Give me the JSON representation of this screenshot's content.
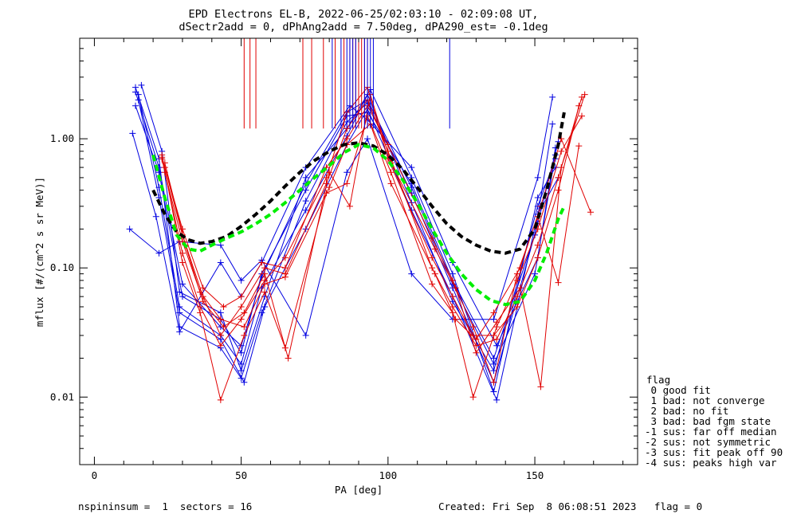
{
  "title_line1": "EPD Electrons EL-B, 2022-06-25/02:03:10 - 02:09:08 UT,",
  "title_line2": "dSectr2add = 0, dPhAng2add = 7.50deg, dPA290_est=  -0.1deg",
  "footer_left": "nspininsum =  1  sectors = 16",
  "footer_right": "Created: Fri Sep  8 06:08:51 2023   flag = 0",
  "legend": {
    "heading": "flag",
    "items": [
      " 0 good fit",
      " 1 bad: not converge",
      " 2 bad: no fit",
      " 3 bad: bad fgm state",
      "-1 sus: far off median",
      "-2 sus: not symmetric",
      "-3 sus: fit peak off 90",
      "-4 sus: peaks high var"
    ]
  },
  "colors": {
    "red": "#e00000",
    "blue": "#0000e0",
    "black": "#000000",
    "green": "#00ee00"
  },
  "chart_data": {
    "type": "line",
    "xlabel": "PA [deg]",
    "ylabel": "mflux [#/(cm^2 s sr MeV)]",
    "xlim": [
      -5,
      185
    ],
    "ylim": [
      0.003,
      6.0
    ],
    "yscale": "log",
    "xticks": [
      0,
      50,
      100,
      150
    ],
    "xtick_labels": [
      "0",
      "50",
      "100",
      "150"
    ],
    "yticks": [
      0.01,
      0.1,
      1.0
    ],
    "ytick_labels": [
      "0.01",
      "0.10",
      "1.00"
    ],
    "series": [
      {
        "color": "blue",
        "x": [
          14,
          22,
          29,
          43,
          50,
          57,
          72,
          86,
          93,
          108,
          122,
          136,
          151,
          158
        ],
        "y": [
          2.5,
          0.7,
          0.035,
          0.024,
          0.014,
          0.045,
          0.33,
          1.35,
          1.9,
          0.38,
          0.07,
          0.013,
          0.22,
          0.95
        ]
      },
      {
        "color": "blue",
        "x": [
          15,
          22,
          29,
          43,
          50,
          57,
          72,
          86,
          93,
          108,
          122,
          136,
          151,
          157
        ],
        "y": [
          2.2,
          0.42,
          0.05,
          0.03,
          0.018,
          0.07,
          0.28,
          1.05,
          2.2,
          0.32,
          0.055,
          0.016,
          0.3,
          0.7
        ]
      },
      {
        "color": "blue",
        "x": [
          14,
          22,
          30,
          43,
          50,
          57,
          72,
          86,
          93,
          108,
          122,
          136,
          150,
          156
        ],
        "y": [
          1.8,
          0.55,
          0.06,
          0.04,
          0.022,
          0.09,
          0.4,
          1.5,
          1.6,
          0.45,
          0.08,
          0.02,
          0.18,
          1.3
        ]
      },
      {
        "color": "blue",
        "x": [
          16,
          23,
          29,
          43,
          50,
          58,
          72,
          86,
          94,
          108,
          122,
          136,
          151,
          157
        ],
        "y": [
          2.6,
          0.8,
          0.065,
          0.045,
          0.016,
          0.06,
          0.5,
          1.2,
          2.4,
          0.5,
          0.09,
          0.011,
          0.35,
          0.6
        ]
      },
      {
        "color": "blue",
        "x": [
          13,
          21,
          29,
          43,
          50,
          57,
          72,
          87,
          93,
          108,
          122,
          137,
          151,
          157
        ],
        "y": [
          1.1,
          0.25,
          0.032,
          0.11,
          0.06,
          0.11,
          0.6,
          1.8,
          1.4,
          0.6,
          0.11,
          0.025,
          0.12,
          0.85
        ]
      },
      {
        "color": "blue",
        "x": [
          12,
          22,
          29,
          43,
          50,
          57,
          72,
          86,
          93,
          108,
          122,
          136,
          151,
          156
        ],
        "y": [
          0.2,
          0.13,
          0.16,
          0.15,
          0.08,
          0.115,
          0.03,
          0.55,
          1.0,
          0.09,
          0.04,
          0.04,
          0.5,
          2.1
        ]
      },
      {
        "color": "blue",
        "x": [
          15,
          22,
          29,
          43,
          51,
          58,
          72,
          86,
          93,
          108,
          122,
          137,
          151,
          158
        ],
        "y": [
          2.0,
          0.35,
          0.045,
          0.028,
          0.013,
          0.05,
          0.2,
          0.9,
          1.7,
          0.28,
          0.06,
          0.0095,
          0.26,
          0.5
        ]
      },
      {
        "color": "blue",
        "x": [
          14,
          22,
          30,
          43,
          50,
          57,
          72,
          86,
          93,
          108,
          122,
          136,
          150,
          157
        ],
        "y": [
          2.3,
          0.6,
          0.075,
          0.035,
          0.025,
          0.085,
          0.45,
          1.6,
          2.0,
          0.42,
          0.075,
          0.018,
          0.09,
          0.75
        ]
      },
      {
        "color": "red",
        "x": [
          23,
          30,
          36,
          43,
          50,
          58,
          65,
          79,
          86,
          93,
          100,
          115,
          122,
          129,
          136,
          144,
          151,
          158,
          165
        ],
        "y": [
          0.7,
          0.13,
          0.05,
          0.025,
          0.04,
          0.08,
          0.12,
          0.5,
          1.6,
          2.5,
          0.7,
          0.12,
          0.06,
          0.03,
          0.03,
          0.05,
          0.12,
          0.4,
          1.8
        ]
      },
      {
        "color": "red",
        "x": [
          24,
          30,
          37,
          43,
          50,
          58,
          65,
          79,
          86,
          93,
          100,
          115,
          122,
          130,
          137,
          144,
          151,
          158,
          166
        ],
        "y": [
          0.6,
          0.18,
          0.06,
          0.03,
          0.05,
          0.1,
          0.09,
          0.45,
          1.2,
          2.0,
          0.8,
          0.1,
          0.05,
          0.025,
          0.028,
          0.06,
          0.15,
          0.5,
          2.1
        ]
      },
      {
        "color": "red",
        "x": [
          23,
          30,
          36,
          43,
          51,
          58,
          65,
          79,
          86,
          93,
          101,
          115,
          122,
          129,
          137,
          144,
          151,
          159,
          166
        ],
        "y": [
          0.75,
          0.11,
          0.045,
          0.0095,
          0.03,
          0.065,
          0.024,
          0.38,
          0.45,
          1.5,
          0.55,
          0.075,
          0.045,
          0.01,
          0.035,
          0.08,
          0.2,
          0.8,
          1.5
        ]
      },
      {
        "color": "red",
        "x": [
          24,
          31,
          37,
          44,
          51,
          58,
          66,
          80,
          87,
          94,
          101,
          116,
          123,
          130,
          137,
          145,
          152,
          159,
          167
        ],
        "y": [
          0.65,
          0.15,
          0.055,
          0.035,
          0.045,
          0.09,
          0.02,
          0.55,
          0.3,
          2.2,
          0.65,
          0.14,
          0.07,
          0.022,
          0.038,
          0.07,
          0.012,
          0.6,
          2.2
        ]
      },
      {
        "color": "red",
        "x": [
          23,
          30,
          37,
          44,
          50,
          57,
          65,
          79,
          86,
          93,
          100,
          115,
          122,
          129,
          136,
          144,
          151,
          158,
          165
        ],
        "y": [
          0.72,
          0.2,
          0.07,
          0.05,
          0.06,
          0.11,
          0.1,
          0.6,
          1.0,
          1.8,
          0.9,
          0.17,
          0.08,
          0.035,
          0.013,
          0.09,
          0.25,
          0.077,
          0.88
        ]
      },
      {
        "color": "red",
        "x": [
          24,
          30,
          36,
          43,
          51,
          58,
          65,
          80,
          86,
          94,
          101,
          116,
          123,
          130,
          136,
          145,
          152,
          159,
          169
        ],
        "y": [
          0.55,
          0.16,
          0.065,
          0.04,
          0.035,
          0.075,
          0.085,
          0.42,
          0.9,
          1.3,
          0.45,
          0.09,
          0.04,
          0.028,
          0.045,
          0.1,
          0.3,
          1.0,
          0.27
        ]
      }
    ],
    "fit_curves": [
      {
        "color": "black",
        "style": "dashed",
        "x": [
          20,
          24,
          28,
          32,
          36,
          40,
          45,
          50,
          55,
          60,
          65,
          70,
          75,
          80,
          85,
          90,
          95,
          100,
          105,
          110,
          115,
          120,
          125,
          130,
          135,
          140,
          145,
          150,
          154,
          158,
          160
        ],
        "y": [
          0.4,
          0.26,
          0.19,
          0.165,
          0.155,
          0.16,
          0.175,
          0.21,
          0.26,
          0.33,
          0.43,
          0.55,
          0.68,
          0.8,
          0.9,
          0.93,
          0.88,
          0.75,
          0.58,
          0.42,
          0.3,
          0.22,
          0.175,
          0.15,
          0.135,
          0.13,
          0.14,
          0.2,
          0.4,
          0.9,
          1.6
        ]
      },
      {
        "color": "green",
        "style": "dashed",
        "x": [
          20,
          24,
          28,
          32,
          36,
          40,
          45,
          50,
          55,
          60,
          65,
          70,
          75,
          80,
          85,
          90,
          95,
          100,
          105,
          110,
          115,
          120,
          125,
          130,
          135,
          140,
          145,
          150,
          154,
          158,
          160
        ],
        "y": [
          0.75,
          0.35,
          0.18,
          0.14,
          0.135,
          0.15,
          0.17,
          0.19,
          0.22,
          0.26,
          0.32,
          0.4,
          0.5,
          0.62,
          0.78,
          0.9,
          0.85,
          0.68,
          0.48,
          0.32,
          0.2,
          0.13,
          0.09,
          0.068,
          0.056,
          0.052,
          0.055,
          0.08,
          0.13,
          0.24,
          0.3
        ]
      }
    ],
    "top_markers": [
      {
        "color": "red",
        "x": [
          51,
          53,
          55,
          71,
          74,
          78,
          82,
          85,
          87,
          88,
          89,
          90,
          91,
          92,
          93
        ]
      },
      {
        "color": "blue",
        "x": [
          81,
          84,
          86,
          87,
          88,
          89,
          92,
          93,
          94,
          95,
          121
        ]
      }
    ]
  }
}
